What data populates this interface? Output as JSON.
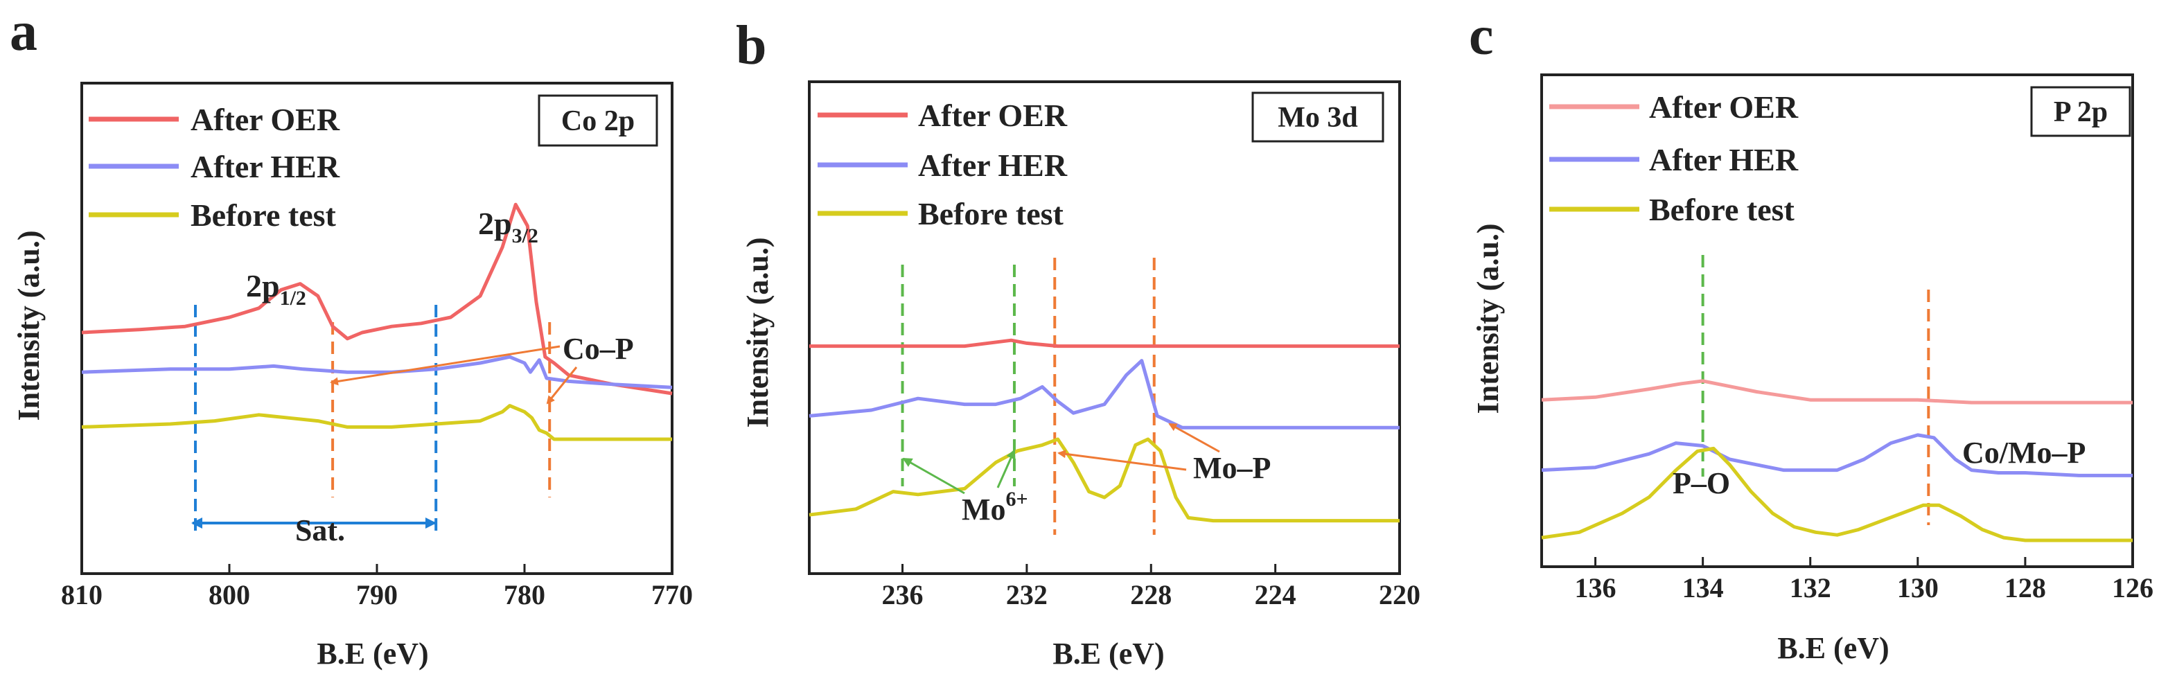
{
  "figure": {
    "colors": {
      "oer": "#f06464",
      "oer_light": "#f59a9a",
      "her": "#8c8cf5",
      "before": "#d6cc1e",
      "blue_dash": "#1f7fd6",
      "orange_dash": "#ef7a35",
      "green_dash": "#5cb84b",
      "axis": "#222222"
    }
  },
  "chart_data": [
    {
      "panel_label": "a",
      "type": "line",
      "xlabel": "B.E (eV)",
      "ylabel": "Intensity (a.u.)",
      "xlim": [
        810,
        770
      ],
      "xticks": [
        "810",
        "800",
        "790",
        "780",
        "770"
      ],
      "xtick_values": [
        810,
        800,
        790,
        780,
        770
      ],
      "box_label": "Co 2p",
      "legend": [
        "After OER",
        "After HER",
        "Before test"
      ],
      "series": [
        {
          "name": "After OER",
          "x": [
            810,
            806,
            803,
            800,
            798,
            796.5,
            795.2,
            794,
            793,
            792,
            791,
            789,
            787,
            785,
            783,
            781.5,
            780.6,
            779.8,
            779.2,
            778.6,
            778,
            777,
            774,
            770
          ],
          "y": [
            0.5,
            0.51,
            0.52,
            0.55,
            0.58,
            0.64,
            0.66,
            0.62,
            0.52,
            0.48,
            0.5,
            0.52,
            0.53,
            0.55,
            0.62,
            0.78,
            0.92,
            0.85,
            0.6,
            0.42,
            0.4,
            0.36,
            0.33,
            0.3
          ]
        },
        {
          "name": "After HER",
          "x": [
            810,
            804,
            800,
            797,
            795,
            792,
            789,
            786,
            783,
            781,
            780,
            779.6,
            779,
            778.5,
            777,
            774,
            770
          ],
          "y": [
            0.37,
            0.38,
            0.38,
            0.39,
            0.38,
            0.37,
            0.37,
            0.38,
            0.4,
            0.42,
            0.4,
            0.37,
            0.41,
            0.35,
            0.34,
            0.33,
            0.32
          ]
        },
        {
          "name": "Before test",
          "x": [
            810,
            804,
            801,
            798,
            796,
            794,
            792,
            789,
            786,
            783,
            781.5,
            781,
            780,
            779.5,
            779,
            778.5,
            778,
            777,
            774,
            770
          ],
          "y": [
            0.19,
            0.2,
            0.21,
            0.23,
            0.22,
            0.21,
            0.19,
            0.19,
            0.2,
            0.21,
            0.24,
            0.26,
            0.24,
            0.22,
            0.18,
            0.17,
            0.15,
            0.15,
            0.15,
            0.15
          ]
        }
      ],
      "annotations": {
        "peak1": "2p",
        "peak1_sub": "1/2",
        "peak2": "2p",
        "peak2_sub": "3/2",
        "sat": "Sat.",
        "cop": "Co–P"
      },
      "markers": {
        "blue_lines": [
          802.3,
          786
        ],
        "orange_lines": [
          793,
          778.3
        ]
      }
    },
    {
      "panel_label": "b",
      "type": "line",
      "xlabel": "B.E (eV)",
      "ylabel": "Intensity (a.u.)",
      "xlim": [
        239,
        220
      ],
      "xticks": [
        "236",
        "232",
        "228",
        "224",
        "220"
      ],
      "xtick_values": [
        236,
        232,
        228,
        224,
        220
      ],
      "box_label": "Mo 3d",
      "legend": [
        "After OER",
        "After HER",
        "Before test"
      ],
      "series": [
        {
          "name": "After OER",
          "x": [
            239,
            236,
            234,
            232.5,
            232,
            231,
            230,
            228,
            226,
            224,
            222,
            220
          ],
          "y": [
            0.62,
            0.62,
            0.62,
            0.64,
            0.63,
            0.62,
            0.62,
            0.62,
            0.62,
            0.62,
            0.62,
            0.62
          ]
        },
        {
          "name": "After HER",
          "x": [
            239,
            237,
            235.5,
            234,
            233,
            232.2,
            231.5,
            231,
            230.5,
            229.5,
            228.8,
            228.3,
            227.8,
            227,
            225,
            222,
            220
          ],
          "y": [
            0.38,
            0.4,
            0.44,
            0.42,
            0.42,
            0.44,
            0.48,
            0.43,
            0.39,
            0.42,
            0.52,
            0.57,
            0.38,
            0.34,
            0.34,
            0.34,
            0.34
          ]
        },
        {
          "name": "Before test",
          "x": [
            239,
            237.5,
            236.3,
            235.5,
            234,
            233,
            232.3,
            231.5,
            231,
            230.5,
            230,
            229.5,
            229,
            228.5,
            228.1,
            227.7,
            227.2,
            226.8,
            226,
            224,
            222,
            220
          ],
          "y": [
            0.04,
            0.06,
            0.12,
            0.11,
            0.13,
            0.22,
            0.26,
            0.28,
            0.3,
            0.22,
            0.12,
            0.1,
            0.14,
            0.28,
            0.3,
            0.26,
            0.1,
            0.03,
            0.02,
            0.02,
            0.02,
            0.02
          ]
        }
      ],
      "annotations": {
        "mo6": "Mo",
        "mo6_sup": "6+",
        "mop": "Mo–P"
      },
      "markers": {
        "green_lines": [
          236,
          232.4
        ],
        "orange_lines": [
          231.1,
          227.9
        ]
      }
    },
    {
      "panel_label": "c",
      "type": "line",
      "xlabel": "B.E (eV)",
      "ylabel": "Intensity (a.u.)",
      "xlim": [
        137,
        126
      ],
      "xticks": [
        "136",
        "134",
        "132",
        "130",
        "128",
        "126"
      ],
      "xtick_values": [
        136,
        134,
        132,
        130,
        128,
        126
      ],
      "box_label": "P 2p",
      "legend": [
        "After OER",
        "After HER",
        "Before test"
      ],
      "series": [
        {
          "name": "After OER",
          "x": [
            137,
            136,
            135,
            134.4,
            134,
            133.5,
            133,
            132,
            131,
            130,
            129,
            128,
            127,
            126
          ],
          "y": [
            0.52,
            0.53,
            0.56,
            0.58,
            0.59,
            0.57,
            0.55,
            0.52,
            0.52,
            0.52,
            0.51,
            0.51,
            0.51,
            0.51
          ]
        },
        {
          "name": "After HER",
          "x": [
            137,
            136,
            135,
            134.5,
            134,
            133.5,
            133,
            132.5,
            132,
            131.5,
            131,
            130.5,
            130,
            129.7,
            129.3,
            129,
            128.5,
            128,
            127,
            126
          ],
          "y": [
            0.26,
            0.27,
            0.32,
            0.36,
            0.35,
            0.3,
            0.28,
            0.26,
            0.26,
            0.26,
            0.3,
            0.36,
            0.39,
            0.38,
            0.3,
            0.26,
            0.25,
            0.25,
            0.24,
            0.24
          ]
        },
        {
          "name": "Before test",
          "x": [
            137,
            136.3,
            135.5,
            135,
            134.5,
            134.1,
            133.8,
            133.5,
            133.1,
            132.7,
            132.3,
            131.9,
            131.5,
            131.1,
            130.7,
            130.3,
            129.9,
            129.6,
            129.2,
            128.8,
            128.4,
            128,
            127.5,
            127,
            126.5,
            126
          ],
          "y": [
            0.01,
            0.03,
            0.1,
            0.16,
            0.26,
            0.33,
            0.34,
            0.28,
            0.18,
            0.1,
            0.05,
            0.03,
            0.02,
            0.04,
            0.07,
            0.1,
            0.13,
            0.13,
            0.09,
            0.04,
            0.01,
            0.0,
            0.0,
            0.0,
            0.0,
            0.0
          ]
        }
      ],
      "annotations": {
        "po": "P–O",
        "comop": "Co/Mo–P"
      },
      "markers": {
        "green_lines": [
          134
        ],
        "orange_lines": [
          129.8
        ]
      }
    }
  ]
}
